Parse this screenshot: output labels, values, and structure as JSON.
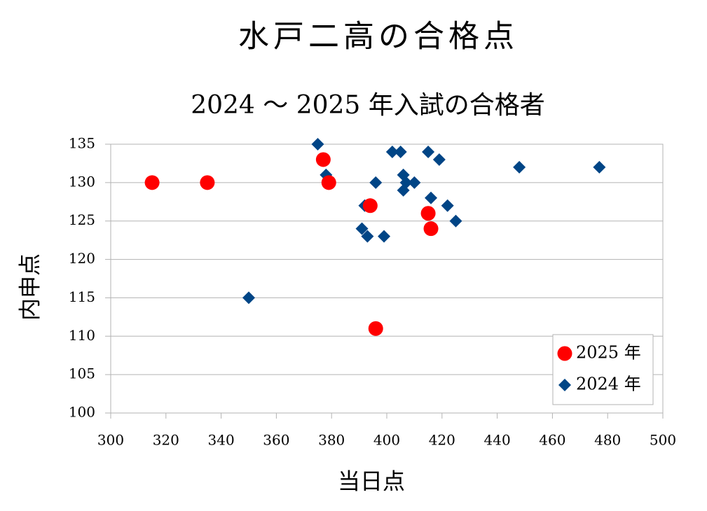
{
  "chart_data": {
    "type": "scatter",
    "title": "水戸二高の合格点",
    "subtitle": "2024 ～ 2025 年入試の合格者",
    "x_label": "当日点",
    "y_label": "内申点",
    "xlim": [
      300,
      500
    ],
    "xticks": [
      300,
      320,
      340,
      360,
      380,
      400,
      420,
      440,
      460,
      480,
      500
    ],
    "ylim": [
      100,
      135
    ],
    "yticks": [
      100,
      105,
      110,
      115,
      120,
      125,
      130,
      135
    ],
    "grid": true,
    "legend": "lower right",
    "series": [
      {
        "name": "2025 年",
        "color": "#ff0000",
        "marker": "circle",
        "x": [
          315,
          335,
          377,
          379,
          394,
          415,
          416,
          396
        ],
        "values": [
          130,
          130,
          133,
          130,
          127,
          126,
          124,
          111
        ]
      },
      {
        "name": "2024 年",
        "color": "#004586",
        "marker": "diamond",
        "x": [
          375,
          378,
          350,
          392,
          391,
          393,
          396,
          399,
          402,
          405,
          406,
          407,
          406,
          410,
          415,
          419,
          416,
          422,
          425,
          448,
          477
        ],
        "values": [
          135,
          131,
          115,
          127,
          124,
          123,
          130,
          123,
          134,
          134,
          131,
          130,
          129,
          130,
          134,
          133,
          128,
          127,
          125,
          132,
          132
        ]
      }
    ]
  }
}
